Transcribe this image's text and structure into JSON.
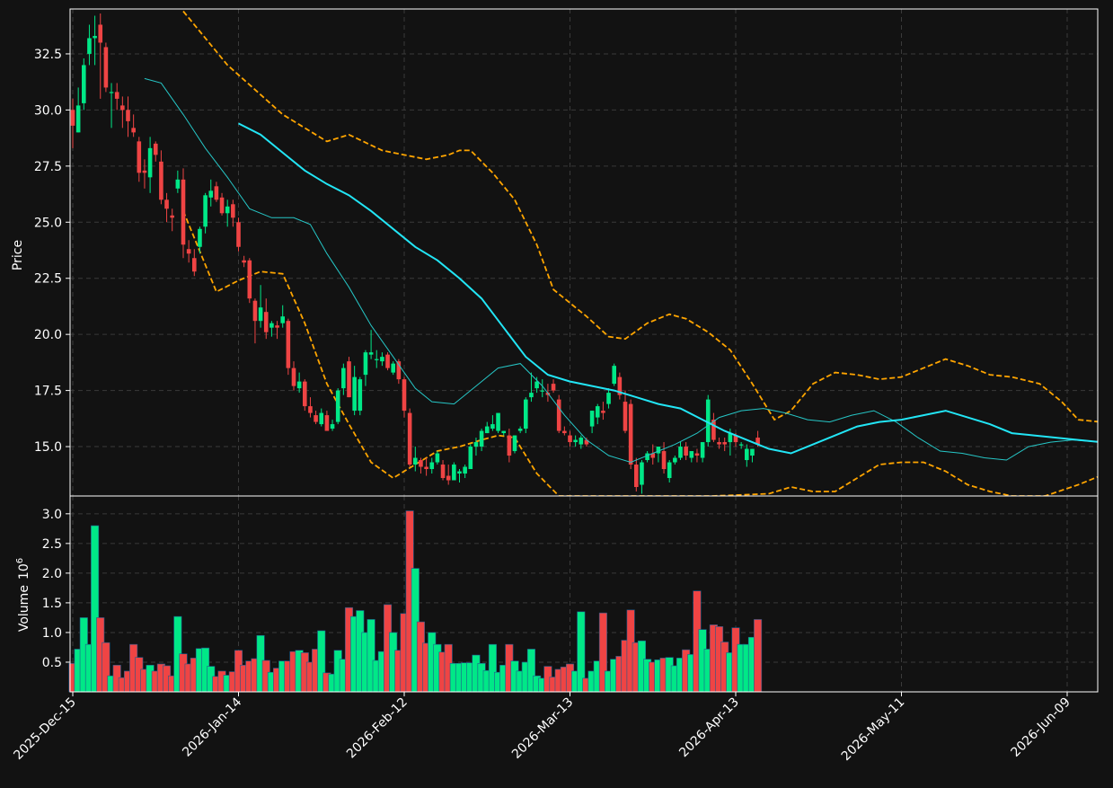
{
  "theme": {
    "background": "#121212",
    "up": "#00e887",
    "down": "#ef4444",
    "mav_short": "#26c6c6",
    "mav_long": "#22e5f5",
    "band": "#ffa500",
    "grid": "#3a3a3a",
    "frame": "#ffffff"
  },
  "chart_data": {
    "type": "candlestick",
    "ylabel": "Price",
    "volume_label": "Volume",
    "volume_exponent": "6",
    "grid": true,
    "xtick_labels": [
      "2025-Dec-15",
      "2026-Jan-14",
      "2026-Feb-12",
      "2026-Mar-13",
      "2026-Apr-13",
      "2026-May-11",
      "2026-Jun-09"
    ],
    "ylim": [
      12.8,
      34.5
    ],
    "ytick_values": [
      15.0,
      17.5,
      20.0,
      22.5,
      25.0,
      27.5,
      30.0,
      32.5
    ],
    "ytick_labels": [
      "15.0",
      "17.5",
      "20.0",
      "22.5",
      "25.0",
      "27.5",
      "30.0",
      "32.5"
    ],
    "volume_ylim": [
      0,
      3.3
    ],
    "volume_ytick_values": [
      0.5,
      1.0,
      1.5,
      2.0,
      2.5,
      3.0
    ],
    "volume_ytick_labels": [
      "0.5",
      "1.0",
      "1.5",
      "2.0",
      "2.5",
      "3.0"
    ],
    "candles": [
      [
        30.0,
        30.5,
        28.3,
        29.3,
        0.48
      ],
      [
        29.0,
        31.0,
        29.0,
        30.2,
        0.72
      ],
      [
        30.3,
        32.3,
        30.0,
        32.0,
        1.25
      ],
      [
        32.5,
        33.8,
        32.0,
        33.2,
        0.8
      ],
      [
        33.2,
        34.2,
        32.0,
        33.3,
        2.8
      ],
      [
        33.8,
        34.3,
        30.5,
        33.0,
        1.25
      ],
      [
        32.8,
        33.0,
        30.8,
        31.0,
        0.83
      ],
      [
        30.8,
        31.2,
        29.2,
        30.8,
        0.27
      ],
      [
        30.8,
        31.2,
        30.0,
        30.5,
        0.45
      ],
      [
        30.2,
        30.6,
        29.2,
        30.0,
        0.24
      ],
      [
        30.0,
        30.6,
        28.8,
        29.5,
        0.35
      ],
      [
        29.2,
        29.8,
        28.8,
        29.0,
        0.8
      ],
      [
        28.6,
        28.8,
        26.8,
        27.2,
        0.58
      ],
      [
        27.3,
        27.8,
        26.5,
        27.2,
        0.38
      ],
      [
        27.0,
        28.8,
        26.3,
        28.3,
        0.45
      ],
      [
        28.5,
        28.6,
        27.7,
        28.0,
        0.35
      ],
      [
        27.7,
        28.2,
        25.8,
        26.0,
        0.47
      ],
      [
        26.0,
        26.3,
        25.0,
        25.6,
        0.44
      ],
      [
        25.3,
        25.6,
        24.6,
        25.2,
        0.27
      ],
      [
        26.5,
        27.3,
        26.3,
        26.9,
        1.27
      ],
      [
        26.9,
        27.4,
        23.4,
        24.0,
        0.64
      ],
      [
        23.8,
        24.2,
        23.2,
        23.6,
        0.47
      ],
      [
        23.4,
        23.8,
        22.6,
        22.8,
        0.57
      ],
      [
        23.9,
        24.8,
        23.6,
        24.7,
        0.73
      ],
      [
        24.8,
        26.3,
        24.5,
        26.2,
        0.74
      ],
      [
        26.1,
        26.9,
        25.7,
        26.4,
        0.43
      ],
      [
        26.6,
        26.8,
        25.9,
        26.0,
        0.26
      ],
      [
        26.1,
        26.3,
        25.3,
        25.4,
        0.35
      ],
      [
        25.4,
        26.0,
        24.8,
        25.7,
        0.28
      ],
      [
        25.8,
        26.0,
        24.8,
        25.2,
        0.34
      ],
      [
        25.0,
        25.2,
        23.7,
        23.9,
        0.7
      ],
      [
        23.3,
        23.5,
        23.0,
        23.2,
        0.45
      ],
      [
        23.3,
        23.4,
        21.4,
        21.6,
        0.52
      ],
      [
        21.5,
        21.6,
        19.6,
        20.6,
        0.56
      ],
      [
        20.6,
        22.2,
        20.3,
        21.2,
        0.95
      ],
      [
        21.0,
        21.6,
        19.8,
        20.1,
        0.53
      ],
      [
        20.3,
        20.6,
        19.9,
        20.5,
        0.33
      ],
      [
        20.4,
        20.6,
        19.8,
        20.3,
        0.4
      ],
      [
        20.5,
        21.3,
        20.3,
        20.8,
        0.52
      ],
      [
        20.6,
        20.7,
        18.2,
        18.5,
        0.52
      ],
      [
        18.5,
        18.8,
        17.5,
        17.7,
        0.68
      ],
      [
        17.6,
        18.3,
        17.4,
        17.9,
        0.7
      ],
      [
        17.9,
        18.0,
        16.6,
        16.8,
        0.66
      ],
      [
        16.8,
        17.2,
        16.3,
        16.5,
        0.5
      ],
      [
        16.4,
        16.6,
        16.0,
        16.1,
        0.72
      ],
      [
        16.0,
        16.7,
        15.9,
        16.5,
        1.03
      ],
      [
        16.4,
        16.6,
        15.8,
        15.7,
        0.32
      ],
      [
        15.8,
        16.2,
        15.7,
        16.0,
        0.3
      ],
      [
        16.1,
        17.6,
        16.0,
        17.5,
        0.7
      ],
      [
        17.6,
        18.7,
        17.3,
        18.5,
        0.55
      ],
      [
        18.8,
        19.0,
        17.2,
        17.2,
        1.42
      ],
      [
        16.6,
        18.6,
        16.4,
        18.1,
        1.27
      ],
      [
        16.6,
        18.1,
        16.4,
        18.0,
        1.37
      ],
      [
        18.2,
        19.3,
        17.7,
        19.2,
        1.0
      ],
      [
        19.1,
        20.2,
        18.9,
        19.2,
        1.22
      ],
      [
        18.9,
        19.3,
        18.5,
        18.9,
        0.53
      ],
      [
        18.8,
        19.2,
        18.6,
        19.0,
        0.68
      ],
      [
        19.1,
        19.2,
        18.4,
        18.5,
        1.47
      ],
      [
        18.3,
        18.8,
        18.2,
        18.7,
        1.0
      ],
      [
        18.8,
        18.9,
        17.8,
        18.0,
        0.7
      ],
      [
        18.0,
        18.1,
        16.3,
        16.6,
        1.32
      ],
      [
        16.5,
        16.7,
        14.1,
        14.2,
        3.05
      ],
      [
        14.2,
        15.0,
        13.9,
        14.5,
        2.08
      ],
      [
        14.4,
        14.5,
        13.8,
        14.1,
        1.18
      ],
      [
        14.1,
        14.5,
        13.7,
        14.0,
        0.82
      ],
      [
        14.0,
        14.5,
        13.8,
        14.3,
        1.0
      ],
      [
        14.3,
        14.8,
        14.2,
        14.7,
        0.8
      ],
      [
        14.2,
        14.4,
        13.5,
        13.6,
        0.67
      ],
      [
        13.7,
        14.2,
        13.3,
        13.5,
        0.8
      ],
      [
        13.5,
        14.3,
        13.5,
        14.2,
        0.48
      ],
      [
        13.8,
        14.0,
        13.4,
        13.9,
        0.48
      ],
      [
        13.8,
        14.2,
        13.6,
        14.1,
        0.49
      ],
      [
        14.0,
        15.1,
        14.0,
        15.0,
        0.49
      ],
      [
        15.0,
        15.4,
        14.6,
        15.2,
        0.62
      ],
      [
        15.0,
        15.8,
        14.8,
        15.7,
        0.48
      ],
      [
        15.6,
        16.1,
        15.6,
        15.9,
        0.36
      ],
      [
        15.8,
        16.4,
        15.7,
        16.0,
        0.8
      ],
      [
        15.7,
        16.4,
        15.6,
        16.5,
        0.33
      ],
      [
        15.6,
        15.7,
        15.5,
        15.7,
        0.45
      ],
      [
        15.5,
        15.8,
        14.3,
        14.6,
        0.8
      ],
      [
        14.8,
        15.5,
        14.7,
        15.5,
        0.52
      ],
      [
        15.7,
        15.9,
        15.6,
        15.8,
        0.35
      ],
      [
        15.8,
        17.2,
        15.6,
        17.1,
        0.5
      ],
      [
        17.2,
        18.3,
        17.0,
        17.4,
        0.72
      ],
      [
        17.6,
        18.1,
        17.4,
        17.9,
        0.27
      ],
      [
        17.5,
        18.0,
        17.2,
        17.5,
        0.23
      ],
      [
        17.4,
        17.8,
        17.0,
        17.3,
        0.43
      ],
      [
        17.8,
        18.0,
        17.4,
        17.5,
        0.25
      ],
      [
        17.1,
        17.3,
        15.6,
        15.7,
        0.38
      ],
      [
        15.7,
        15.9,
        15.5,
        15.6,
        0.42
      ],
      [
        15.5,
        15.7,
        15.0,
        15.2,
        0.47
      ],
      [
        15.2,
        15.5,
        15.0,
        15.3,
        0.35
      ],
      [
        15.1,
        15.5,
        14.9,
        15.4,
        1.35
      ],
      [
        15.3,
        15.4,
        15.0,
        15.1,
        0.23
      ],
      [
        15.9,
        16.6,
        15.6,
        16.6,
        0.35
      ],
      [
        16.3,
        16.9,
        16.0,
        16.8,
        0.52
      ],
      [
        16.6,
        17.0,
        16.2,
        16.5,
        1.33
      ],
      [
        16.9,
        17.6,
        16.7,
        17.4,
        0.35
      ],
      [
        17.8,
        18.7,
        17.7,
        18.6,
        0.55
      ],
      [
        18.1,
        18.3,
        17.1,
        17.3,
        0.6
      ],
      [
        17.0,
        17.5,
        15.6,
        15.7,
        0.87
      ],
      [
        16.9,
        17.1,
        14.0,
        14.2,
        1.38
      ],
      [
        14.2,
        14.5,
        13.0,
        13.2,
        0.83
      ],
      [
        13.3,
        14.4,
        12.9,
        14.3,
        0.86
      ],
      [
        14.4,
        14.8,
        14.3,
        14.7,
        0.55
      ],
      [
        14.7,
        15.1,
        14.2,
        14.5,
        0.5
      ],
      [
        14.7,
        15.0,
        14.3,
        15.0,
        0.54
      ],
      [
        14.8,
        15.2,
        13.8,
        14.0,
        0.57
      ],
      [
        13.6,
        14.4,
        13.4,
        14.3,
        0.58
      ],
      [
        14.3,
        14.6,
        14.2,
        14.5,
        0.44
      ],
      [
        14.5,
        15.2,
        14.4,
        15.0,
        0.57
      ],
      [
        15.0,
        15.2,
        14.4,
        14.6,
        0.71
      ],
      [
        14.5,
        14.8,
        14.3,
        14.8,
        0.63
      ],
      [
        14.7,
        14.9,
        14.3,
        14.6,
        1.7
      ],
      [
        14.5,
        15.2,
        14.3,
        15.2,
        1.05
      ],
      [
        15.2,
        17.3,
        15.0,
        17.1,
        0.72
      ],
      [
        16.2,
        16.5,
        15.2,
        15.3,
        1.13
      ],
      [
        15.2,
        15.4,
        14.9,
        15.1,
        1.1
      ],
      [
        15.2,
        15.4,
        14.8,
        15.1,
        0.84
      ],
      [
        15.2,
        15.8,
        14.6,
        15.6,
        0.66
      ],
      [
        15.5,
        15.6,
        15.0,
        15.2,
        1.08
      ],
      [
        15.1,
        15.2,
        14.9,
        15.1,
        0.8
      ],
      [
        14.4,
        15.1,
        14.1,
        14.9,
        0.8
      ],
      [
        14.6,
        14.9,
        14.3,
        14.9,
        0.92
      ],
      [
        15.4,
        15.7,
        15.0,
        15.1,
        1.22
      ]
    ],
    "band_upper": [
      [
        20,
        34.4
      ],
      [
        28,
        32.0
      ],
      [
        38,
        29.8
      ],
      [
        46,
        28.6
      ],
      [
        50,
        28.9
      ],
      [
        56,
        28.2
      ],
      [
        60,
        28.0
      ],
      [
        64,
        27.8
      ],
      [
        68,
        28.0
      ],
      [
        70,
        28.2
      ],
      [
        72,
        28.2
      ],
      [
        76,
        27.2
      ],
      [
        80,
        26.0
      ],
      [
        84,
        24.0
      ],
      [
        87,
        22.0
      ],
      [
        90,
        21.4
      ],
      [
        93,
        20.8
      ],
      [
        97,
        19.9
      ],
      [
        100,
        19.8
      ],
      [
        104,
        20.5
      ],
      [
        108,
        20.9
      ],
      [
        111,
        20.7
      ],
      [
        115,
        20.1
      ],
      [
        119,
        19.3
      ],
      [
        123,
        17.8
      ],
      [
        127,
        16.2
      ],
      [
        130,
        16.6
      ],
      [
        134,
        17.8
      ],
      [
        138,
        18.3
      ],
      [
        142,
        18.2
      ],
      [
        146,
        18.0
      ],
      [
        150,
        18.1
      ],
      [
        154,
        18.5
      ],
      [
        158,
        18.9
      ],
      [
        162,
        18.6
      ],
      [
        166,
        18.2
      ],
      [
        170,
        18.1
      ],
      [
        175,
        17.8
      ],
      [
        179,
        17.0
      ],
      [
        182,
        16.2
      ],
      [
        186,
        16.1
      ]
    ],
    "band_lower": [
      [
        20,
        25.5
      ],
      [
        26,
        21.9
      ],
      [
        30,
        22.4
      ],
      [
        34,
        22.8
      ],
      [
        38,
        22.7
      ],
      [
        42,
        20.5
      ],
      [
        46,
        17.8
      ],
      [
        50,
        16.0
      ],
      [
        54,
        14.3
      ],
      [
        58,
        13.6
      ],
      [
        62,
        14.2
      ],
      [
        66,
        14.8
      ],
      [
        70,
        15.0
      ],
      [
        74,
        15.3
      ],
      [
        77,
        15.5
      ],
      [
        80,
        15.4
      ],
      [
        84,
        13.8
      ],
      [
        88,
        12.8
      ],
      [
        116,
        12.8
      ],
      [
        126,
        12.9
      ],
      [
        130,
        13.2
      ],
      [
        134,
        13.0
      ],
      [
        138,
        13.0
      ],
      [
        142,
        13.6
      ],
      [
        146,
        14.2
      ],
      [
        150,
        14.3
      ],
      [
        154,
        14.3
      ],
      [
        158,
        13.9
      ],
      [
        162,
        13.3
      ],
      [
        166,
        13.0
      ],
      [
        170,
        12.8
      ],
      [
        176,
        12.8
      ],
      [
        182,
        13.3
      ],
      [
        186,
        13.7
      ]
    ],
    "mav_short": [
      [
        13,
        31.4
      ],
      [
        16,
        31.2
      ],
      [
        20,
        29.8
      ],
      [
        24,
        28.3
      ],
      [
        28,
        27.0
      ],
      [
        32,
        25.6
      ],
      [
        36,
        25.2
      ],
      [
        40,
        25.2
      ],
      [
        43,
        24.9
      ],
      [
        46,
        23.6
      ],
      [
        50,
        22.1
      ],
      [
        54,
        20.4
      ],
      [
        58,
        19.0
      ],
      [
        62,
        17.6
      ],
      [
        65,
        17.0
      ],
      [
        69,
        16.9
      ],
      [
        73,
        17.7
      ],
      [
        77,
        18.5
      ],
      [
        81,
        18.7
      ],
      [
        85,
        17.7
      ],
      [
        89,
        16.4
      ],
      [
        93,
        15.3
      ],
      [
        97,
        14.6
      ],
      [
        101,
        14.3
      ],
      [
        105,
        14.7
      ],
      [
        109,
        15.1
      ],
      [
        113,
        15.6
      ],
      [
        117,
        16.3
      ],
      [
        121,
        16.6
      ],
      [
        125,
        16.7
      ],
      [
        129,
        16.5
      ],
      [
        133,
        16.2
      ],
      [
        137,
        16.1
      ],
      [
        141,
        16.4
      ],
      [
        145,
        16.6
      ],
      [
        149,
        16.1
      ],
      [
        153,
        15.4
      ],
      [
        157,
        14.8
      ],
      [
        161,
        14.7
      ],
      [
        165,
        14.5
      ],
      [
        169,
        14.4
      ],
      [
        173,
        15.0
      ],
      [
        177,
        15.2
      ],
      [
        181,
        15.3
      ],
      [
        186,
        15.2
      ]
    ],
    "mav_long": [
      [
        30,
        29.4
      ],
      [
        34,
        28.9
      ],
      [
        38,
        28.1
      ],
      [
        42,
        27.3
      ],
      [
        46,
        26.7
      ],
      [
        50,
        26.2
      ],
      [
        54,
        25.5
      ],
      [
        58,
        24.7
      ],
      [
        62,
        23.9
      ],
      [
        66,
        23.3
      ],
      [
        70,
        22.5
      ],
      [
        74,
        21.6
      ],
      [
        78,
        20.3
      ],
      [
        82,
        19.0
      ],
      [
        86,
        18.2
      ],
      [
        90,
        17.9
      ],
      [
        94,
        17.7
      ],
      [
        98,
        17.5
      ],
      [
        102,
        17.2
      ],
      [
        106,
        16.9
      ],
      [
        110,
        16.7
      ],
      [
        114,
        16.2
      ],
      [
        118,
        15.7
      ],
      [
        122,
        15.3
      ],
      [
        126,
        14.9
      ],
      [
        130,
        14.7
      ],
      [
        134,
        15.1
      ],
      [
        138,
        15.5
      ],
      [
        142,
        15.9
      ],
      [
        146,
        16.1
      ],
      [
        150,
        16.2
      ],
      [
        154,
        16.4
      ],
      [
        158,
        16.6
      ],
      [
        162,
        16.3
      ],
      [
        166,
        16.0
      ],
      [
        170,
        15.6
      ],
      [
        174,
        15.5
      ],
      [
        178,
        15.4
      ],
      [
        182,
        15.3
      ],
      [
        186,
        15.2
      ]
    ]
  }
}
